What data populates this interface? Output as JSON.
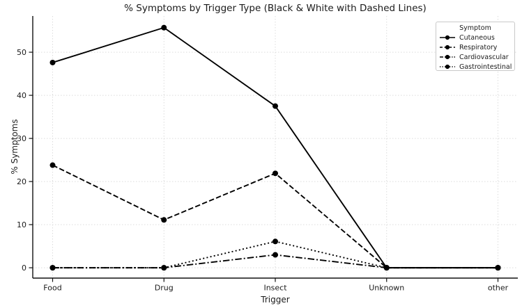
{
  "chart_data": {
    "type": "line",
    "title": "% Symptoms by Trigger Type (Black & White with Dashed Lines)",
    "xlabel": "Trigger",
    "ylabel": "% Symptoms",
    "categories": [
      "Food",
      "Drug",
      "Insect",
      "Unknown",
      "other"
    ],
    "series": [
      {
        "name": "Cutaneous",
        "linestyle": "solid",
        "values": [
          47.6,
          55.7,
          37.5,
          0,
          0
        ]
      },
      {
        "name": "Respiratory",
        "linestyle": "dashed",
        "values": [
          23.8,
          11.1,
          21.9,
          0,
          0
        ]
      },
      {
        "name": "Cardiovascular",
        "linestyle": "dashdot",
        "values": [
          0,
          0,
          3.0,
          0,
          0
        ]
      },
      {
        "name": "Gastrointestinal",
        "linestyle": "dotted",
        "values": [
          0,
          0,
          6.1,
          0,
          0
        ]
      }
    ],
    "yticks": [
      0,
      10,
      20,
      30,
      40,
      50
    ],
    "ylim": [
      -2.4,
      58.4
    ],
    "grid": true,
    "legend": {
      "title": "Symptom",
      "position": "upper right"
    },
    "colors": {
      "line": "#000000",
      "grid": "#dcdcdc",
      "text": "#1a1a1a",
      "axis": "#111111"
    }
  }
}
